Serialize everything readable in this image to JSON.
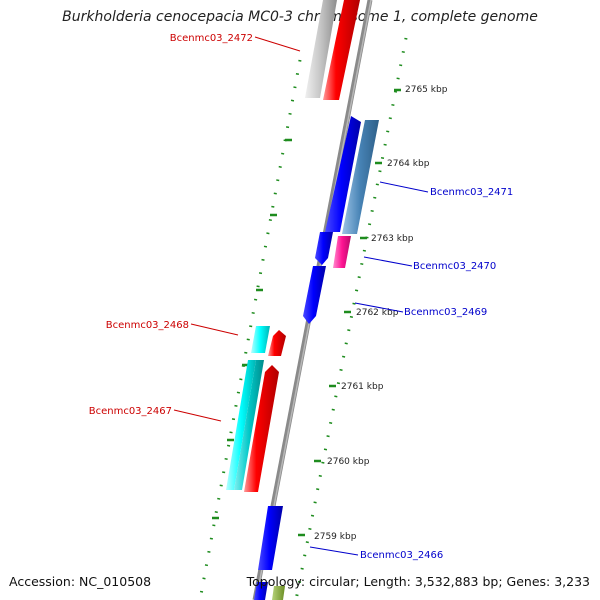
{
  "title": "Burkholderia cenocepacia MC0-3 chromosome 1, complete genome",
  "footer": {
    "accession": "Accession: NC_010508",
    "topology": "Topology: circular; Length: 3,532,883 bp; Genes: 3,233"
  },
  "colors": {
    "backbone": "#8a8a8a",
    "tick": "#1e8c1e",
    "forward_label": "#0000cc",
    "reverse_label": "#cc0000"
  },
  "ticks": [
    "2765 kbp",
    "2764 kbp",
    "2763 kbp",
    "2762 kbp",
    "2761 kbp",
    "2760 kbp",
    "2759 kbp"
  ],
  "genes": [
    {
      "name": "Bcenmc03_2472",
      "strand": "reverse",
      "color": "#ff0000"
    },
    {
      "name": "Bcenmc03_2471",
      "strand": "forward",
      "color": "#4682b4"
    },
    {
      "name": "Bcenmc03_2470",
      "strand": "forward",
      "color": "#ff1493"
    },
    {
      "name": "Bcenmc03_2469",
      "strand": "forward",
      "color": "#0000ff"
    },
    {
      "name": "Bcenmc03_2468",
      "strand": "reverse",
      "color": "#00ffff"
    },
    {
      "name": "Bcenmc03_2467",
      "strand": "reverse",
      "color": "#00c8c8"
    },
    {
      "name": "Bcenmc03_2466",
      "strand": "forward",
      "color": "#0000ff"
    }
  ]
}
